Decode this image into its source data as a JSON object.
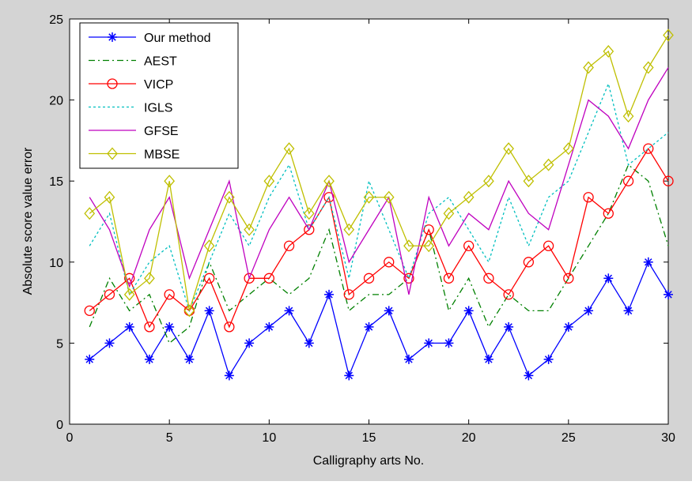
{
  "chart_data": {
    "type": "line",
    "title": "",
    "xlabel": "Calligraphy arts No.",
    "ylabel": "Absolute score value error",
    "xlim": [
      0,
      30
    ],
    "ylim": [
      0,
      25
    ],
    "xticks": [
      0,
      5,
      10,
      15,
      20,
      25,
      30
    ],
    "yticks": [
      0,
      5,
      10,
      15,
      20,
      25
    ],
    "grid": false,
    "legend_position": "top-left",
    "x": [
      1,
      2,
      3,
      4,
      5,
      6,
      7,
      8,
      9,
      10,
      11,
      12,
      13,
      14,
      15,
      16,
      17,
      18,
      19,
      20,
      21,
      22,
      23,
      24,
      25,
      26,
      27,
      28,
      29,
      30
    ],
    "series": [
      {
        "name": "Our method",
        "color": "#0000ff",
        "dash": "",
        "marker": "star",
        "values": [
          4,
          5,
          6,
          4,
          6,
          4,
          7,
          3,
          5,
          6,
          7,
          5,
          8,
          3,
          6,
          7,
          4,
          5,
          5,
          7,
          4,
          6,
          3,
          4,
          6,
          7,
          9,
          7,
          10,
          8
        ]
      },
      {
        "name": "AEST",
        "color": "#008000",
        "dash": "8,4,2,4",
        "marker": "none",
        "values": [
          6,
          9,
          7,
          8,
          5,
          6,
          10,
          7,
          8,
          9,
          8,
          9,
          12,
          7,
          8,
          8,
          9,
          12,
          7,
          9,
          6,
          8,
          7,
          7,
          9,
          11,
          13,
          16,
          15,
          11
        ]
      },
      {
        "name": "VICP",
        "color": "#ff0000",
        "dash": "",
        "marker": "circle",
        "values": [
          7,
          8,
          9,
          6,
          8,
          7,
          9,
          6,
          9,
          9,
          11,
          12,
          14,
          8,
          9,
          10,
          9,
          12,
          9,
          11,
          9,
          8,
          10,
          11,
          9,
          14,
          13,
          15,
          17,
          15
        ]
      },
      {
        "name": "IGLS",
        "color": "#00bfbf",
        "dash": "3,3",
        "marker": "none",
        "values": [
          11,
          13,
          8,
          10,
          11,
          7,
          10,
          13,
          11,
          14,
          16,
          12,
          14,
          9,
          15,
          12,
          9,
          13,
          14,
          12,
          10,
          14,
          11,
          14,
          15,
          18,
          21,
          16,
          17,
          18
        ]
      },
      {
        "name": "GFSE",
        "color": "#bf00bf",
        "dash": "",
        "marker": "none",
        "values": [
          14,
          12,
          8.5,
          12,
          14,
          9,
          12,
          15,
          9,
          12,
          14,
          12,
          15,
          10,
          12,
          14,
          8,
          14,
          11,
          13,
          12,
          15,
          13,
          12,
          16,
          20,
          19,
          17,
          20,
          22
        ]
      },
      {
        "name": "MBSE",
        "color": "#bfbf00",
        "dash": "",
        "marker": "diamond",
        "values": [
          13,
          14,
          8,
          9,
          15,
          7,
          11,
          14,
          12,
          15,
          17,
          13,
          15,
          12,
          14,
          14,
          11,
          11,
          13,
          14,
          15,
          17,
          15,
          16,
          17,
          22,
          23,
          19,
          22,
          24
        ]
      }
    ]
  }
}
